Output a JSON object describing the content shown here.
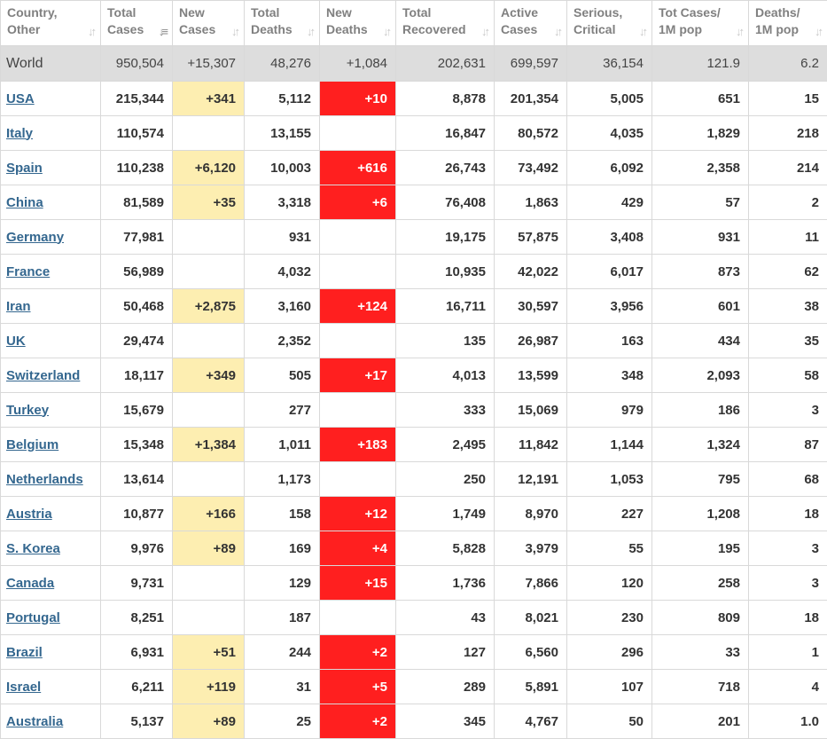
{
  "colors": {
    "new_cases_highlight": "#fdeeb1",
    "new_deaths_highlight": "#ff1f1f",
    "country_link": "#34678f",
    "world_row_bg": "#dddddd",
    "header_text": "#808080"
  },
  "headers": [
    {
      "line1": "Country,",
      "line2": "Other",
      "sort_icon": "sort-arrows-icon"
    },
    {
      "line1": "Total",
      "line2": "Cases",
      "sort_icon": "sort-descending-icon"
    },
    {
      "line1": "New",
      "line2": "Cases",
      "sort_icon": "sort-arrows-icon"
    },
    {
      "line1": "Total",
      "line2": "Deaths",
      "sort_icon": "sort-arrows-icon"
    },
    {
      "line1": "New",
      "line2": "Deaths",
      "sort_icon": "sort-arrows-icon"
    },
    {
      "line1": "Total",
      "line2": "Recovered",
      "sort_icon": "sort-arrows-icon"
    },
    {
      "line1": "Active",
      "line2": "Cases",
      "sort_icon": "sort-arrows-icon"
    },
    {
      "line1": "Serious,",
      "line2": "Critical",
      "sort_icon": "sort-arrows-icon"
    },
    {
      "line1": "Tot Cases/",
      "line2": "1M pop",
      "sort_icon": "sort-arrows-icon"
    },
    {
      "line1": "Deaths/",
      "line2": "1M pop",
      "sort_icon": "sort-arrows-icon"
    }
  ],
  "world": {
    "country": "World",
    "total_cases": "950,504",
    "new_cases": "+15,307",
    "total_deaths": "48,276",
    "new_deaths": "+1,084",
    "total_recovered": "202,631",
    "active_cases": "699,597",
    "serious_critical": "36,154",
    "cases_per_1m": "121.9",
    "deaths_per_1m": "6.2"
  },
  "rows": [
    {
      "country": "USA",
      "total_cases": "215,344",
      "new_cases": "+341",
      "total_deaths": "5,112",
      "new_deaths": "+10",
      "total_recovered": "8,878",
      "active_cases": "201,354",
      "serious_critical": "5,005",
      "cases_per_1m": "651",
      "deaths_per_1m": "15"
    },
    {
      "country": "Italy",
      "total_cases": "110,574",
      "new_cases": "",
      "total_deaths": "13,155",
      "new_deaths": "",
      "total_recovered": "16,847",
      "active_cases": "80,572",
      "serious_critical": "4,035",
      "cases_per_1m": "1,829",
      "deaths_per_1m": "218"
    },
    {
      "country": "Spain",
      "total_cases": "110,238",
      "new_cases": "+6,120",
      "total_deaths": "10,003",
      "new_deaths": "+616",
      "total_recovered": "26,743",
      "active_cases": "73,492",
      "serious_critical": "6,092",
      "cases_per_1m": "2,358",
      "deaths_per_1m": "214"
    },
    {
      "country": "China",
      "total_cases": "81,589",
      "new_cases": "+35",
      "total_deaths": "3,318",
      "new_deaths": "+6",
      "total_recovered": "76,408",
      "active_cases": "1,863",
      "serious_critical": "429",
      "cases_per_1m": "57",
      "deaths_per_1m": "2"
    },
    {
      "country": "Germany",
      "total_cases": "77,981",
      "new_cases": "",
      "total_deaths": "931",
      "new_deaths": "",
      "total_recovered": "19,175",
      "active_cases": "57,875",
      "serious_critical": "3,408",
      "cases_per_1m": "931",
      "deaths_per_1m": "11"
    },
    {
      "country": "France",
      "total_cases": "56,989",
      "new_cases": "",
      "total_deaths": "4,032",
      "new_deaths": "",
      "total_recovered": "10,935",
      "active_cases": "42,022",
      "serious_critical": "6,017",
      "cases_per_1m": "873",
      "deaths_per_1m": "62"
    },
    {
      "country": "Iran",
      "total_cases": "50,468",
      "new_cases": "+2,875",
      "total_deaths": "3,160",
      "new_deaths": "+124",
      "total_recovered": "16,711",
      "active_cases": "30,597",
      "serious_critical": "3,956",
      "cases_per_1m": "601",
      "deaths_per_1m": "38"
    },
    {
      "country": "UK",
      "total_cases": "29,474",
      "new_cases": "",
      "total_deaths": "2,352",
      "new_deaths": "",
      "total_recovered": "135",
      "active_cases": "26,987",
      "serious_critical": "163",
      "cases_per_1m": "434",
      "deaths_per_1m": "35"
    },
    {
      "country": "Switzerland",
      "total_cases": "18,117",
      "new_cases": "+349",
      "total_deaths": "505",
      "new_deaths": "+17",
      "total_recovered": "4,013",
      "active_cases": "13,599",
      "serious_critical": "348",
      "cases_per_1m": "2,093",
      "deaths_per_1m": "58"
    },
    {
      "country": "Turkey",
      "total_cases": "15,679",
      "new_cases": "",
      "total_deaths": "277",
      "new_deaths": "",
      "total_recovered": "333",
      "active_cases": "15,069",
      "serious_critical": "979",
      "cases_per_1m": "186",
      "deaths_per_1m": "3"
    },
    {
      "country": "Belgium",
      "total_cases": "15,348",
      "new_cases": "+1,384",
      "total_deaths": "1,011",
      "new_deaths": "+183",
      "total_recovered": "2,495",
      "active_cases": "11,842",
      "serious_critical": "1,144",
      "cases_per_1m": "1,324",
      "deaths_per_1m": "87"
    },
    {
      "country": "Netherlands",
      "total_cases": "13,614",
      "new_cases": "",
      "total_deaths": "1,173",
      "new_deaths": "",
      "total_recovered": "250",
      "active_cases": "12,191",
      "serious_critical": "1,053",
      "cases_per_1m": "795",
      "deaths_per_1m": "68"
    },
    {
      "country": "Austria",
      "total_cases": "10,877",
      "new_cases": "+166",
      "total_deaths": "158",
      "new_deaths": "+12",
      "total_recovered": "1,749",
      "active_cases": "8,970",
      "serious_critical": "227",
      "cases_per_1m": "1,208",
      "deaths_per_1m": "18"
    },
    {
      "country": "S. Korea",
      "total_cases": "9,976",
      "new_cases": "+89",
      "total_deaths": "169",
      "new_deaths": "+4",
      "total_recovered": "5,828",
      "active_cases": "3,979",
      "serious_critical": "55",
      "cases_per_1m": "195",
      "deaths_per_1m": "3"
    },
    {
      "country": "Canada",
      "total_cases": "9,731",
      "new_cases": "",
      "total_deaths": "129",
      "new_deaths": "+15",
      "total_recovered": "1,736",
      "active_cases": "7,866",
      "serious_critical": "120",
      "cases_per_1m": "258",
      "deaths_per_1m": "3"
    },
    {
      "country": "Portugal",
      "total_cases": "8,251",
      "new_cases": "",
      "total_deaths": "187",
      "new_deaths": "",
      "total_recovered": "43",
      "active_cases": "8,021",
      "serious_critical": "230",
      "cases_per_1m": "809",
      "deaths_per_1m": "18"
    },
    {
      "country": "Brazil",
      "total_cases": "6,931",
      "new_cases": "+51",
      "total_deaths": "244",
      "new_deaths": "+2",
      "total_recovered": "127",
      "active_cases": "6,560",
      "serious_critical": "296",
      "cases_per_1m": "33",
      "deaths_per_1m": "1"
    },
    {
      "country": "Israel",
      "total_cases": "6,211",
      "new_cases": "+119",
      "total_deaths": "31",
      "new_deaths": "+5",
      "total_recovered": "289",
      "active_cases": "5,891",
      "serious_critical": "107",
      "cases_per_1m": "718",
      "deaths_per_1m": "4"
    },
    {
      "country": "Australia",
      "total_cases": "5,137",
      "new_cases": "+89",
      "total_deaths": "25",
      "new_deaths": "+2",
      "total_recovered": "345",
      "active_cases": "4,767",
      "serious_critical": "50",
      "cases_per_1m": "201",
      "deaths_per_1m": "1.0"
    }
  ]
}
